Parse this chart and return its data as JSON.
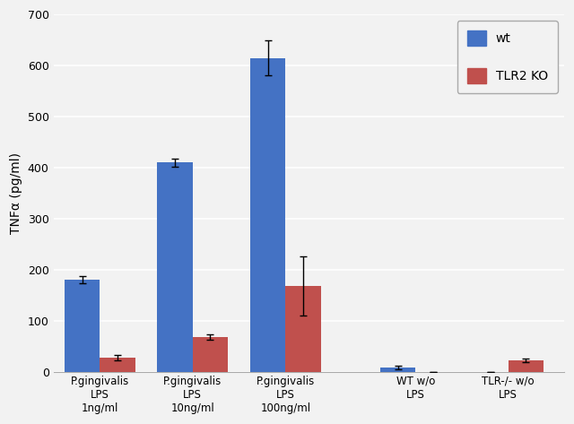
{
  "groups": [
    "P.gingivalis\nLPS\n1ng/ml",
    "P.gingivalis\nLPS\n10ng/ml",
    "P.gingivalis\nLPS\n100ng/ml",
    "WT w/o\nLPS",
    "TLR-/- w/o\nLPS"
  ],
  "wt_values": [
    180,
    410,
    615,
    8,
    0
  ],
  "wt_errors": [
    7,
    8,
    35,
    3,
    0
  ],
  "tlr2ko_values": [
    28,
    68,
    168,
    0,
    22
  ],
  "tlr2ko_errors": [
    5,
    5,
    58,
    0,
    4
  ],
  "wt_color": "#4472C4",
  "tlr2ko_color": "#C0504D",
  "ylabel": "TNFα (pg/ml)",
  "ylim": [
    0,
    700
  ],
  "yticks": [
    0,
    100,
    200,
    300,
    400,
    500,
    600,
    700
  ],
  "legend_wt": "wt",
  "legend_tlr2ko": "TLR2 KO",
  "bar_width": 0.38,
  "background_color": "#f2f2f2",
  "grid_color": "#ffffff",
  "plot_bg": "#f2f2f2"
}
